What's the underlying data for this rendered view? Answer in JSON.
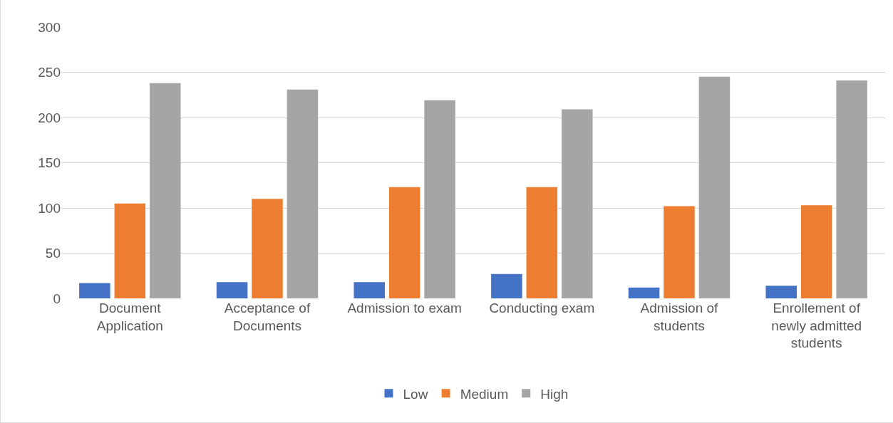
{
  "chart_data": {
    "type": "bar",
    "categories": [
      "Document Application",
      "Acceptance of Documents",
      "Admission to exam",
      "Conducting exam",
      "Admission of students",
      "Enrollement of newly admitted students"
    ],
    "series": [
      {
        "name": "Low",
        "color": "#4472c4",
        "values": [
          17,
          18,
          18,
          27,
          12,
          14
        ]
      },
      {
        "name": "Medium",
        "color": "#ed7d31",
        "values": [
          105,
          110,
          123,
          123,
          102,
          103
        ]
      },
      {
        "name": "High",
        "color": "#a5a5a5",
        "values": [
          238,
          231,
          219,
          209,
          245,
          241
        ]
      }
    ],
    "ylim": [
      0,
      300
    ],
    "yticks": [
      0,
      50,
      100,
      150,
      200,
      250,
      300
    ],
    "grid": "y",
    "legend": "bottom"
  }
}
